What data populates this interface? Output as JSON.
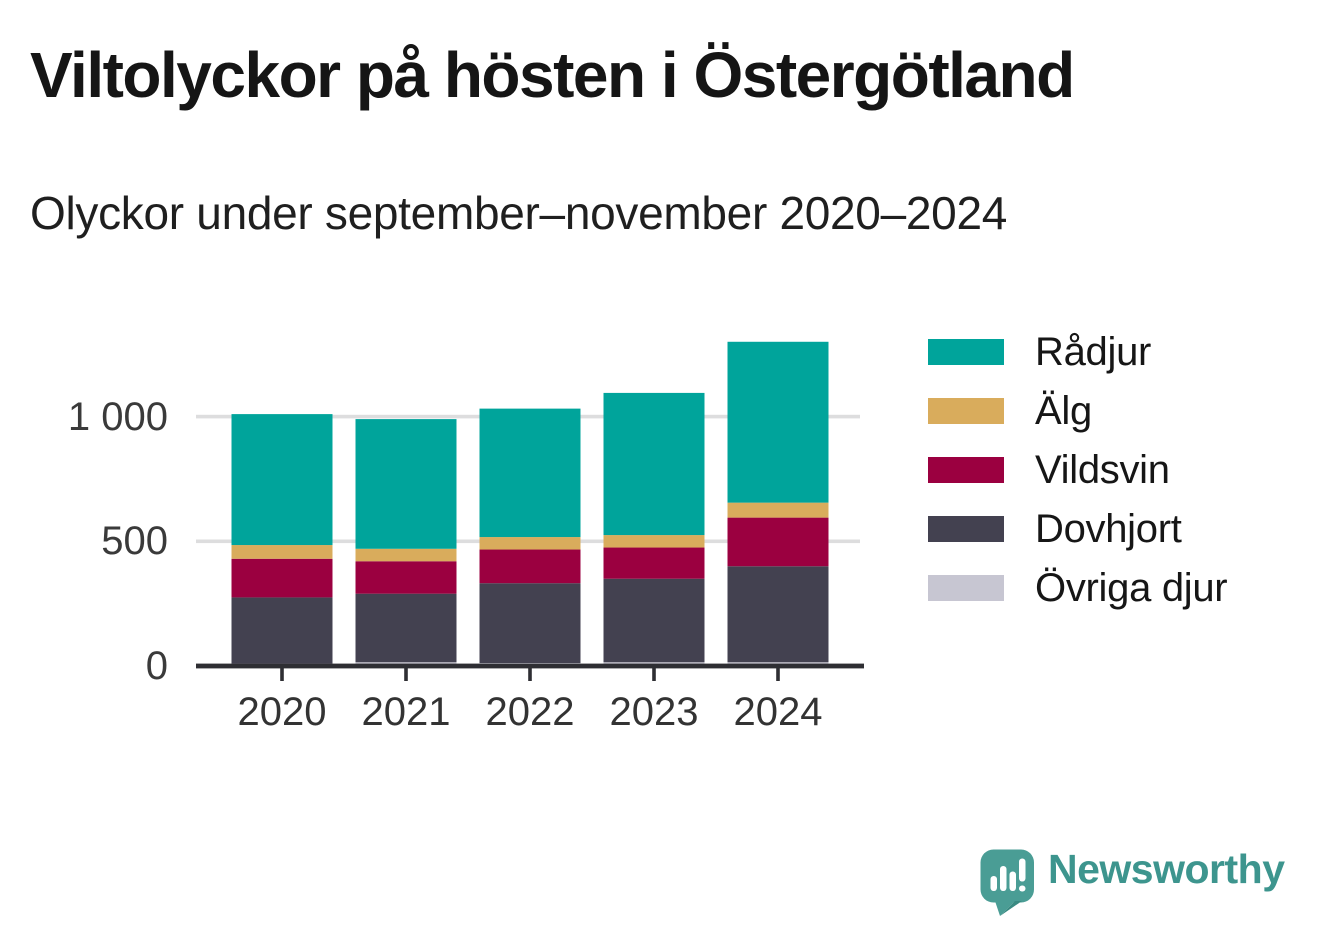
{
  "header": {
    "title": "Viltolyckor på hösten i Östergötland",
    "subtitle": "Olyckor under september–november 2020–2024"
  },
  "chart_data": {
    "type": "bar",
    "stacked": true,
    "title": "Viltolyckor på hösten i Östergötland",
    "subtitle": "Olyckor under september–november 2020–2024",
    "categories": [
      "2020",
      "2021",
      "2022",
      "2023",
      "2024"
    ],
    "series": [
      {
        "name": "Övriga djur",
        "color": "#C7C6D2",
        "values": [
          10,
          15,
          12,
          15,
          15
        ]
      },
      {
        "name": "Dovhjort",
        "color": "#434150",
        "values": [
          265,
          275,
          320,
          335,
          385
        ]
      },
      {
        "name": "Vildsvin",
        "color": "#9B0040",
        "values": [
          155,
          130,
          135,
          125,
          195
        ]
      },
      {
        "name": "Älg",
        "color": "#D9AC5C",
        "values": [
          55,
          50,
          50,
          50,
          60
        ]
      },
      {
        "name": "Rådjur",
        "color": "#00A49B",
        "values": [
          525,
          520,
          515,
          570,
          645
        ]
      }
    ],
    "stack_order": "first-series-at-bottom",
    "totals": [
      1010,
      990,
      1032,
      1095,
      1300
    ],
    "yticks": [
      0,
      500,
      1000
    ],
    "ytick_labels": [
      "0",
      "500",
      "1 000"
    ],
    "ylim": [
      0,
      1350
    ],
    "xlabel": "",
    "ylabel": "",
    "grid": "horizontal",
    "legend_position": "right",
    "legend_order": [
      "Rådjur",
      "Älg",
      "Vildsvin",
      "Dovhjort",
      "Övriga djur"
    ]
  },
  "footer": {
    "brand": "Newsworthy",
    "logo_icon": "speech-bubble-bar-chart-exclamation"
  },
  "colors": {
    "brand_teal": "#3D958E",
    "axis": "#2E2E33",
    "grid": "#DDDDDE",
    "label_text": "#333333"
  }
}
